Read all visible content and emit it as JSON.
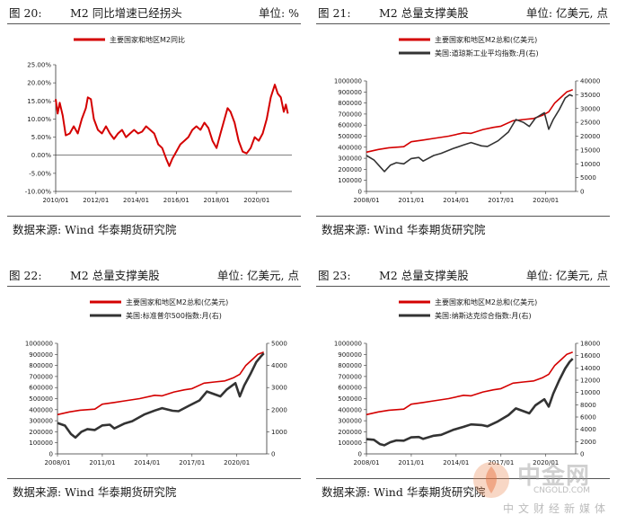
{
  "panels": [
    {
      "number": "图 20:",
      "title": "M2 同比增速已经拐头",
      "unit": "单位: %",
      "source": "数据来源:  Wind  华泰期货研究院"
    },
    {
      "number": "图 21:",
      "title": "M2 总量支撑美股",
      "unit": "单位: 亿美元, 点",
      "source": "数据来源:  Wind  华泰期货研究院"
    },
    {
      "number": "图 22:",
      "title": "M2 总量支撑美股",
      "unit": "单位: 亿美元, 点",
      "source": "数据来源:  Wind  华泰期货研究院"
    },
    {
      "number": "图 23:",
      "title": "M2 总量支撑美股",
      "unit": "单位: 亿美元, 点",
      "source": "数据来源:  Wind  华泰期货研究院"
    }
  ],
  "watermark": {
    "main": "中金网",
    "domain": "CNGOLD.COM",
    "tagline": "中文财经新媒体"
  },
  "colors": {
    "red": "#d40000",
    "dark": "#333333"
  },
  "chart_data": [
    {
      "type": "line",
      "x_ticks": [
        "2010/01",
        "2012/01",
        "2014/01",
        "2016/01",
        "2018/01",
        "2020/01"
      ],
      "x_range": [
        2010.0,
        2021.75
      ],
      "y_ticks": [
        "-10.00%",
        "-5.00%",
        "0.00%",
        "5.00%",
        "10.00%",
        "15.00%",
        "20.00%",
        "25.00%"
      ],
      "ylim": [
        -10,
        25
      ],
      "series": [
        {
          "name": "主要国家和地区M2同比",
          "color": "#d40000",
          "points": [
            [
              2010.0,
              15.5
            ],
            [
              2010.1,
              11.5
            ],
            [
              2010.2,
              14.5
            ],
            [
              2010.35,
              11
            ],
            [
              2010.5,
              5.5
            ],
            [
              2010.7,
              6
            ],
            [
              2010.9,
              8
            ],
            [
              2011.1,
              6
            ],
            [
              2011.3,
              10
            ],
            [
              2011.5,
              13
            ],
            [
              2011.6,
              16
            ],
            [
              2011.75,
              15.5
            ],
            [
              2011.9,
              10
            ],
            [
              2012.1,
              7
            ],
            [
              2012.3,
              6
            ],
            [
              2012.5,
              8
            ],
            [
              2012.7,
              6
            ],
            [
              2012.9,
              4.5
            ],
            [
              2013.1,
              6
            ],
            [
              2013.3,
              7
            ],
            [
              2013.5,
              5
            ],
            [
              2013.7,
              6
            ],
            [
              2013.9,
              7
            ],
            [
              2014.1,
              6
            ],
            [
              2014.3,
              6.5
            ],
            [
              2014.5,
              8
            ],
            [
              2014.7,
              7
            ],
            [
              2014.9,
              6
            ],
            [
              2015.1,
              3
            ],
            [
              2015.3,
              2
            ],
            [
              2015.5,
              -1
            ],
            [
              2015.65,
              -3
            ],
            [
              2015.8,
              -1
            ],
            [
              2016.0,
              1
            ],
            [
              2016.2,
              3
            ],
            [
              2016.4,
              4
            ],
            [
              2016.6,
              5
            ],
            [
              2016.8,
              7
            ],
            [
              2017.0,
              8
            ],
            [
              2017.2,
              7
            ],
            [
              2017.4,
              9
            ],
            [
              2017.6,
              7.5
            ],
            [
              2017.8,
              4
            ],
            [
              2018.0,
              2
            ],
            [
              2018.2,
              6
            ],
            [
              2018.4,
              10
            ],
            [
              2018.55,
              13
            ],
            [
              2018.7,
              12
            ],
            [
              2018.9,
              9
            ],
            [
              2019.1,
              4
            ],
            [
              2019.3,
              1
            ],
            [
              2019.5,
              0.5
            ],
            [
              2019.7,
              2
            ],
            [
              2019.9,
              5
            ],
            [
              2020.1,
              4
            ],
            [
              2020.3,
              6
            ],
            [
              2020.5,
              10
            ],
            [
              2020.7,
              16
            ],
            [
              2020.9,
              19.5
            ],
            [
              2021.05,
              17
            ],
            [
              2021.2,
              16
            ],
            [
              2021.35,
              12
            ],
            [
              2021.45,
              14
            ],
            [
              2021.55,
              11.5
            ]
          ]
        }
      ]
    },
    {
      "type": "line",
      "x_ticks": [
        "2008/01",
        "2011/01",
        "2014/01",
        "2017/01",
        "2020/01"
      ],
      "x_range": [
        2008.0,
        2022.0
      ],
      "y_ticks": [
        "0",
        "100000",
        "200000",
        "300000",
        "400000",
        "500000",
        "600000",
        "700000",
        "800000",
        "900000",
        "1000000"
      ],
      "ylim": [
        0,
        1000000
      ],
      "y2_ticks": [
        "0",
        "5000",
        "10000",
        "15000",
        "20000",
        "25000",
        "30000",
        "35000",
        "40000"
      ],
      "y2lim": [
        0,
        40000
      ],
      "series": [
        {
          "name": "主要国家和地区M2总和(亿美元)",
          "color": "#d40000",
          "axis": "left",
          "points": [
            [
              2008.0,
              355000
            ],
            [
              2008.8,
              380000
            ],
            [
              2009.5,
              395000
            ],
            [
              2010.5,
              405000
            ],
            [
              2011.0,
              450000
            ],
            [
              2011.8,
              465000
            ],
            [
              2012.5,
              480000
            ],
            [
              2013.5,
              500000
            ],
            [
              2014.5,
              530000
            ],
            [
              2015.0,
              525000
            ],
            [
              2015.8,
              560000
            ],
            [
              2016.5,
              580000
            ],
            [
              2017.0,
              590000
            ],
            [
              2017.8,
              640000
            ],
            [
              2018.5,
              650000
            ],
            [
              2019.2,
              660000
            ],
            [
              2019.8,
              690000
            ],
            [
              2020.2,
              720000
            ],
            [
              2020.6,
              800000
            ],
            [
              2021.0,
              850000
            ],
            [
              2021.4,
              900000
            ],
            [
              2021.8,
              920000
            ]
          ]
        },
        {
          "name": "美国:道琼斯工业平均指数:月(右)",
          "color": "#333333",
          "axis": "right",
          "points": [
            [
              2008.0,
              13000
            ],
            [
              2008.5,
              11400
            ],
            [
              2008.9,
              9000
            ],
            [
              2009.2,
              7200
            ],
            [
              2009.6,
              9500
            ],
            [
              2010.0,
              10400
            ],
            [
              2010.5,
              10000
            ],
            [
              2011.0,
              11900
            ],
            [
              2011.5,
              12300
            ],
            [
              2011.8,
              11000
            ],
            [
              2012.5,
              13000
            ],
            [
              2013.0,
              13800
            ],
            [
              2013.8,
              15500
            ],
            [
              2014.5,
              16800
            ],
            [
              2015.0,
              17700
            ],
            [
              2015.7,
              16500
            ],
            [
              2016.1,
              16300
            ],
            [
              2016.8,
              18300
            ],
            [
              2017.5,
              21500
            ],
            [
              2018.0,
              26000
            ],
            [
              2018.5,
              25000
            ],
            [
              2018.9,
              23500
            ],
            [
              2019.3,
              26500
            ],
            [
              2019.9,
              28500
            ],
            [
              2020.2,
              22500
            ],
            [
              2020.5,
              26000
            ],
            [
              2020.9,
              29600
            ],
            [
              2021.3,
              33800
            ],
            [
              2021.6,
              35000
            ],
            [
              2021.8,
              34500
            ]
          ]
        }
      ]
    },
    {
      "type": "line",
      "x_ticks": [
        "2008/01",
        "2011/01",
        "2014/01",
        "2017/01",
        "2020/01"
      ],
      "x_range": [
        2008.0,
        2022.0
      ],
      "y_ticks": [
        "0",
        "100000",
        "200000",
        "300000",
        "400000",
        "500000",
        "600000",
        "700000",
        "800000",
        "900000",
        "1000000"
      ],
      "ylim": [
        0,
        1000000
      ],
      "y2_ticks": [
        "0",
        "1000",
        "2000",
        "3000",
        "4000",
        "5000"
      ],
      "y2lim": [
        0,
        5000
      ],
      "series": [
        {
          "name": "主要国家和地区M2总和(亿美元)",
          "color": "#d40000",
          "axis": "left",
          "points": [
            [
              2008.0,
              355000
            ],
            [
              2008.8,
              380000
            ],
            [
              2009.5,
              395000
            ],
            [
              2010.5,
              405000
            ],
            [
              2011.0,
              450000
            ],
            [
              2011.8,
              465000
            ],
            [
              2012.5,
              480000
            ],
            [
              2013.5,
              500000
            ],
            [
              2014.5,
              530000
            ],
            [
              2015.0,
              525000
            ],
            [
              2015.8,
              560000
            ],
            [
              2016.5,
              580000
            ],
            [
              2017.0,
              590000
            ],
            [
              2017.8,
              640000
            ],
            [
              2018.5,
              650000
            ],
            [
              2019.2,
              660000
            ],
            [
              2019.8,
              690000
            ],
            [
              2020.2,
              720000
            ],
            [
              2020.6,
              800000
            ],
            [
              2021.0,
              850000
            ],
            [
              2021.4,
              900000
            ],
            [
              2021.8,
              920000
            ]
          ]
        },
        {
          "name": "美国:标准普尔500指数:月(右)",
          "color": "#333333",
          "axis": "right",
          "points": [
            [
              2008.0,
              1400
            ],
            [
              2008.5,
              1280
            ],
            [
              2008.9,
              900
            ],
            [
              2009.2,
              740
            ],
            [
              2009.6,
              1000
            ],
            [
              2010.0,
              1120
            ],
            [
              2010.5,
              1080
            ],
            [
              2011.0,
              1290
            ],
            [
              2011.5,
              1320
            ],
            [
              2011.8,
              1150
            ],
            [
              2012.5,
              1380
            ],
            [
              2013.0,
              1480
            ],
            [
              2013.8,
              1780
            ],
            [
              2014.5,
              1960
            ],
            [
              2015.0,
              2070
            ],
            [
              2015.7,
              1950
            ],
            [
              2016.1,
              1930
            ],
            [
              2016.8,
              2180
            ],
            [
              2017.5,
              2420
            ],
            [
              2018.0,
              2820
            ],
            [
              2018.9,
              2600
            ],
            [
              2019.3,
              2900
            ],
            [
              2019.9,
              3200
            ],
            [
              2020.2,
              2600
            ],
            [
              2020.5,
              3100
            ],
            [
              2020.9,
              3600
            ],
            [
              2021.3,
              4150
            ],
            [
              2021.6,
              4400
            ],
            [
              2021.8,
              4550
            ]
          ]
        }
      ]
    },
    {
      "type": "line",
      "x_ticks": [
        "2008/01",
        "2011/01",
        "2014/01",
        "2017/01",
        "2020/01"
      ],
      "x_range": [
        2008.0,
        2022.0
      ],
      "y_ticks": [
        "0",
        "100000",
        "200000",
        "300000",
        "400000",
        "500000",
        "600000",
        "700000",
        "800000",
        "900000",
        "1000000"
      ],
      "ylim": [
        0,
        1000000
      ],
      "y2_ticks": [
        "0",
        "2000",
        "4000",
        "6000",
        "8000",
        "10000",
        "12000",
        "14000",
        "16000",
        "18000"
      ],
      "y2lim": [
        0,
        18000
      ],
      "series": [
        {
          "name": "主要国家和地区M2总和(亿美元)",
          "color": "#d40000",
          "axis": "left",
          "points": [
            [
              2008.0,
              355000
            ],
            [
              2008.8,
              380000
            ],
            [
              2009.5,
              395000
            ],
            [
              2010.5,
              405000
            ],
            [
              2011.0,
              450000
            ],
            [
              2011.8,
              465000
            ],
            [
              2012.5,
              480000
            ],
            [
              2013.5,
              500000
            ],
            [
              2014.5,
              530000
            ],
            [
              2015.0,
              525000
            ],
            [
              2015.8,
              560000
            ],
            [
              2016.5,
              580000
            ],
            [
              2017.0,
              590000
            ],
            [
              2017.8,
              640000
            ],
            [
              2018.5,
              650000
            ],
            [
              2019.2,
              660000
            ],
            [
              2019.8,
              690000
            ],
            [
              2020.2,
              720000
            ],
            [
              2020.6,
              800000
            ],
            [
              2021.0,
              850000
            ],
            [
              2021.4,
              900000
            ],
            [
              2021.8,
              920000
            ]
          ]
        },
        {
          "name": "美国:纳斯达克综合指数:月(右)",
          "color": "#333333",
          "axis": "right",
          "points": [
            [
              2008.0,
              2400
            ],
            [
              2008.5,
              2300
            ],
            [
              2008.9,
              1600
            ],
            [
              2009.2,
              1400
            ],
            [
              2009.6,
              1900
            ],
            [
              2010.0,
              2200
            ],
            [
              2010.5,
              2150
            ],
            [
              2011.0,
              2700
            ],
            [
              2011.5,
              2750
            ],
            [
              2011.8,
              2450
            ],
            [
              2012.5,
              2950
            ],
            [
              2013.0,
              3100
            ],
            [
              2013.8,
              3900
            ],
            [
              2014.5,
              4400
            ],
            [
              2015.0,
              4800
            ],
            [
              2015.7,
              4700
            ],
            [
              2016.1,
              4500
            ],
            [
              2016.8,
              5300
            ],
            [
              2017.5,
              6300
            ],
            [
              2018.0,
              7400
            ],
            [
              2018.9,
              6600
            ],
            [
              2019.3,
              7900
            ],
            [
              2019.9,
              8900
            ],
            [
              2020.2,
              7700
            ],
            [
              2020.5,
              9800
            ],
            [
              2020.9,
              12000
            ],
            [
              2021.3,
              13900
            ],
            [
              2021.6,
              15000
            ],
            [
              2021.8,
              15500
            ]
          ]
        }
      ]
    }
  ]
}
